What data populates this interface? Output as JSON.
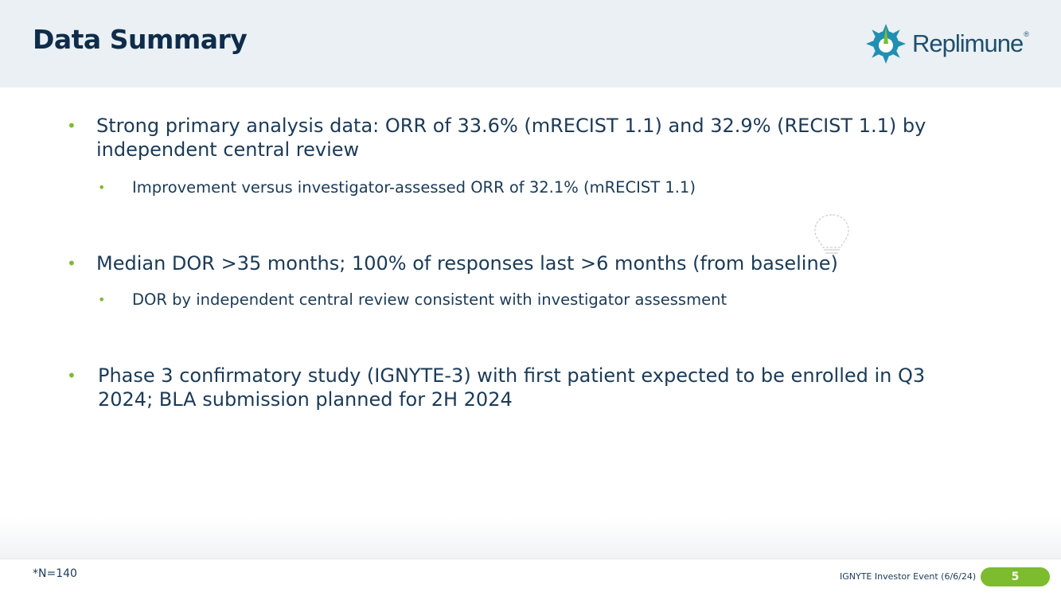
{
  "header": {
    "title": "Data Summary",
    "logo_text": "Replimune",
    "logo_reg": "®"
  },
  "bullets": [
    {
      "text": "Strong primary analysis data: ORR of 33.6% (mRECIST 1.1) and 32.9% (RECIST 1.1) by independent central review",
      "sub": "Improvement versus investigator-assessed ORR of 32.1% (mRECIST 1.1)"
    },
    {
      "text": "Median DOR >35 months; 100% of responses last >6 months (from baseline)",
      "sub": "DOR by independent central review consistent with investigator assessment"
    },
    {
      "text": "Phase 3 confirmatory study (IGNYTE-3) with first patient expected to be enrolled in Q3 2024; BLA submission planned for 2H 2024"
    }
  ],
  "footer": {
    "footnote": "*N=140",
    "event": "IGNYTE Investor Event (6/6/24)",
    "page_number": "5"
  },
  "colors": {
    "accent_green": "#7dbb2f",
    "navy": "#0f2d4a",
    "header_bg": "#eaf0f3"
  },
  "icons": [
    "replimune-logo-icon",
    "lightbulb-icon"
  ]
}
